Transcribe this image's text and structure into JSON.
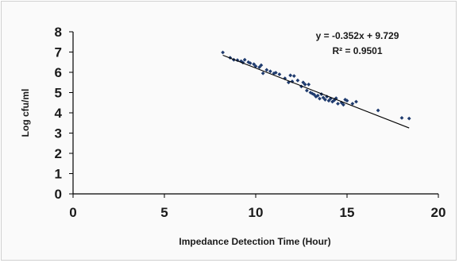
{
  "chart_data": {
    "type": "scatter",
    "xlabel": "Impedance Detection Time (Hour)",
    "ylabel": "Log cfu/ml",
    "xlim": [
      0,
      20
    ],
    "ylim": [
      0,
      8
    ],
    "xticks": [
      "0",
      "5",
      "10",
      "15",
      "20"
    ],
    "yticks": [
      "0",
      "1",
      "2",
      "3",
      "4",
      "5",
      "6",
      "7",
      "8"
    ],
    "grid": false,
    "legend": "none",
    "marker_color": "#1f3b6e",
    "trendline": {
      "slope": -0.352,
      "intercept": 9.729,
      "x_range": [
        8.2,
        18.4
      ],
      "color": "#000000"
    },
    "equation_label": "y = -0.352x + 9.729",
    "r2_label": "R² = 0.9501",
    "points": [
      [
        8.2,
        6.98
      ],
      [
        8.6,
        6.72
      ],
      [
        8.8,
        6.62
      ],
      [
        9.0,
        6.6
      ],
      [
        9.2,
        6.55
      ],
      [
        9.3,
        6.48
      ],
      [
        9.4,
        6.62
      ],
      [
        9.6,
        6.5
      ],
      [
        9.7,
        6.45
      ],
      [
        9.9,
        6.4
      ],
      [
        10.0,
        6.3
      ],
      [
        10.2,
        6.25
      ],
      [
        10.3,
        6.35
      ],
      [
        10.4,
        5.95
      ],
      [
        10.6,
        6.12
      ],
      [
        10.8,
        6.05
      ],
      [
        11.0,
        5.95
      ],
      [
        11.1,
        5.98
      ],
      [
        11.3,
        5.9
      ],
      [
        11.6,
        5.7
      ],
      [
        11.8,
        5.5
      ],
      [
        11.9,
        5.85
      ],
      [
        12.0,
        5.55
      ],
      [
        12.1,
        5.82
      ],
      [
        12.3,
        5.6
      ],
      [
        12.5,
        5.3
      ],
      [
        12.6,
        5.5
      ],
      [
        12.7,
        5.4
      ],
      [
        12.8,
        5.1
      ],
      [
        12.9,
        5.4
      ],
      [
        13.0,
        5.0
      ],
      [
        13.1,
        4.95
      ],
      [
        13.2,
        4.9
      ],
      [
        13.3,
        4.8
      ],
      [
        13.4,
        4.85
      ],
      [
        13.5,
        4.7
      ],
      [
        13.6,
        4.92
      ],
      [
        13.7,
        4.75
      ],
      [
        13.8,
        4.65
      ],
      [
        13.9,
        4.8
      ],
      [
        14.0,
        4.6
      ],
      [
        14.1,
        4.7
      ],
      [
        14.2,
        4.55
      ],
      [
        14.3,
        4.62
      ],
      [
        14.4,
        4.72
      ],
      [
        14.5,
        4.45
      ],
      [
        14.7,
        4.5
      ],
      [
        14.8,
        4.4
      ],
      [
        14.9,
        4.65
      ],
      [
        15.0,
        4.6
      ],
      [
        15.3,
        4.45
      ],
      [
        15.5,
        4.55
      ],
      [
        16.7,
        4.12
      ],
      [
        18.0,
        3.75
      ],
      [
        18.4,
        3.72
      ]
    ]
  }
}
